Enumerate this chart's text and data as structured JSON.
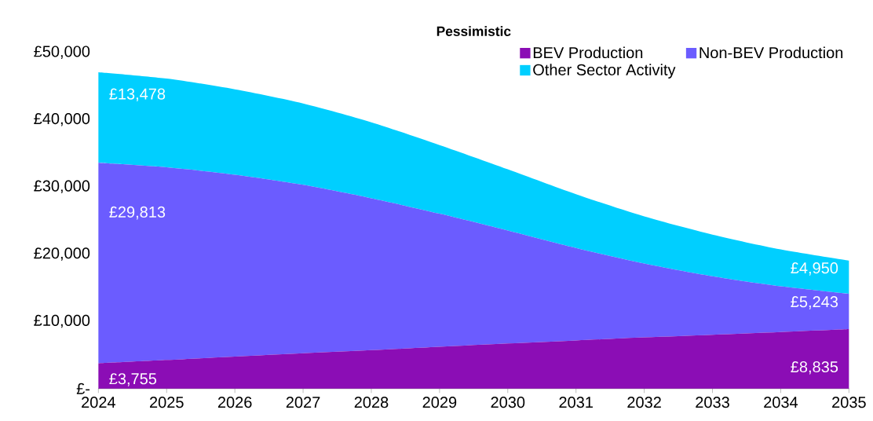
{
  "chart_data": {
    "type": "area",
    "title": "Pessimistic",
    "stacked": true,
    "legend": "top right",
    "x": [
      2024,
      2025,
      2026,
      2027,
      2028,
      2029,
      2030,
      2031,
      2032,
      2033,
      2034,
      2035
    ],
    "xlim": [
      2024,
      2035
    ],
    "xticks": [
      2024,
      2025,
      2026,
      2027,
      2028,
      2029,
      2030,
      2031,
      2032,
      2033,
      2034,
      2035
    ],
    "ylim": [
      0,
      50000
    ],
    "yticks": [
      {
        "value": 0,
        "label": "£-"
      },
      {
        "value": 10000,
        "label": "£10,000"
      },
      {
        "value": 20000,
        "label": "£20,000"
      },
      {
        "value": 30000,
        "label": "£30,000"
      },
      {
        "value": 40000,
        "label": "£40,000"
      },
      {
        "value": 50000,
        "label": "£50,000"
      }
    ],
    "series": [
      {
        "name": "BEV Production",
        "color": "#8b0db5",
        "values": [
          3755,
          4250,
          4750,
          5250,
          5700,
          6200,
          6700,
          7150,
          7600,
          8000,
          8400,
          8835
        ],
        "value_labels": [
          "£3,755",
          null,
          null,
          null,
          null,
          null,
          null,
          null,
          null,
          null,
          null,
          "£8,835"
        ]
      },
      {
        "name": "Non-BEV Production",
        "color": "#6b5cff",
        "values": [
          29813,
          28650,
          27050,
          25050,
          22600,
          19800,
          16800,
          13750,
          11000,
          8700,
          6800,
          5243
        ],
        "value_labels": [
          "£29,813",
          null,
          null,
          null,
          null,
          null,
          null,
          null,
          null,
          null,
          null,
          "£5,243"
        ]
      },
      {
        "name": "Other Sector Activity",
        "color": "#00cfff",
        "values": [
          13478,
          13200,
          12700,
          12100,
          11300,
          10200,
          9100,
          8000,
          7000,
          6200,
          5500,
          4950
        ],
        "value_labels": [
          "£13,478",
          null,
          null,
          null,
          null,
          null,
          null,
          null,
          null,
          null,
          null,
          "£4,950"
        ]
      }
    ]
  }
}
